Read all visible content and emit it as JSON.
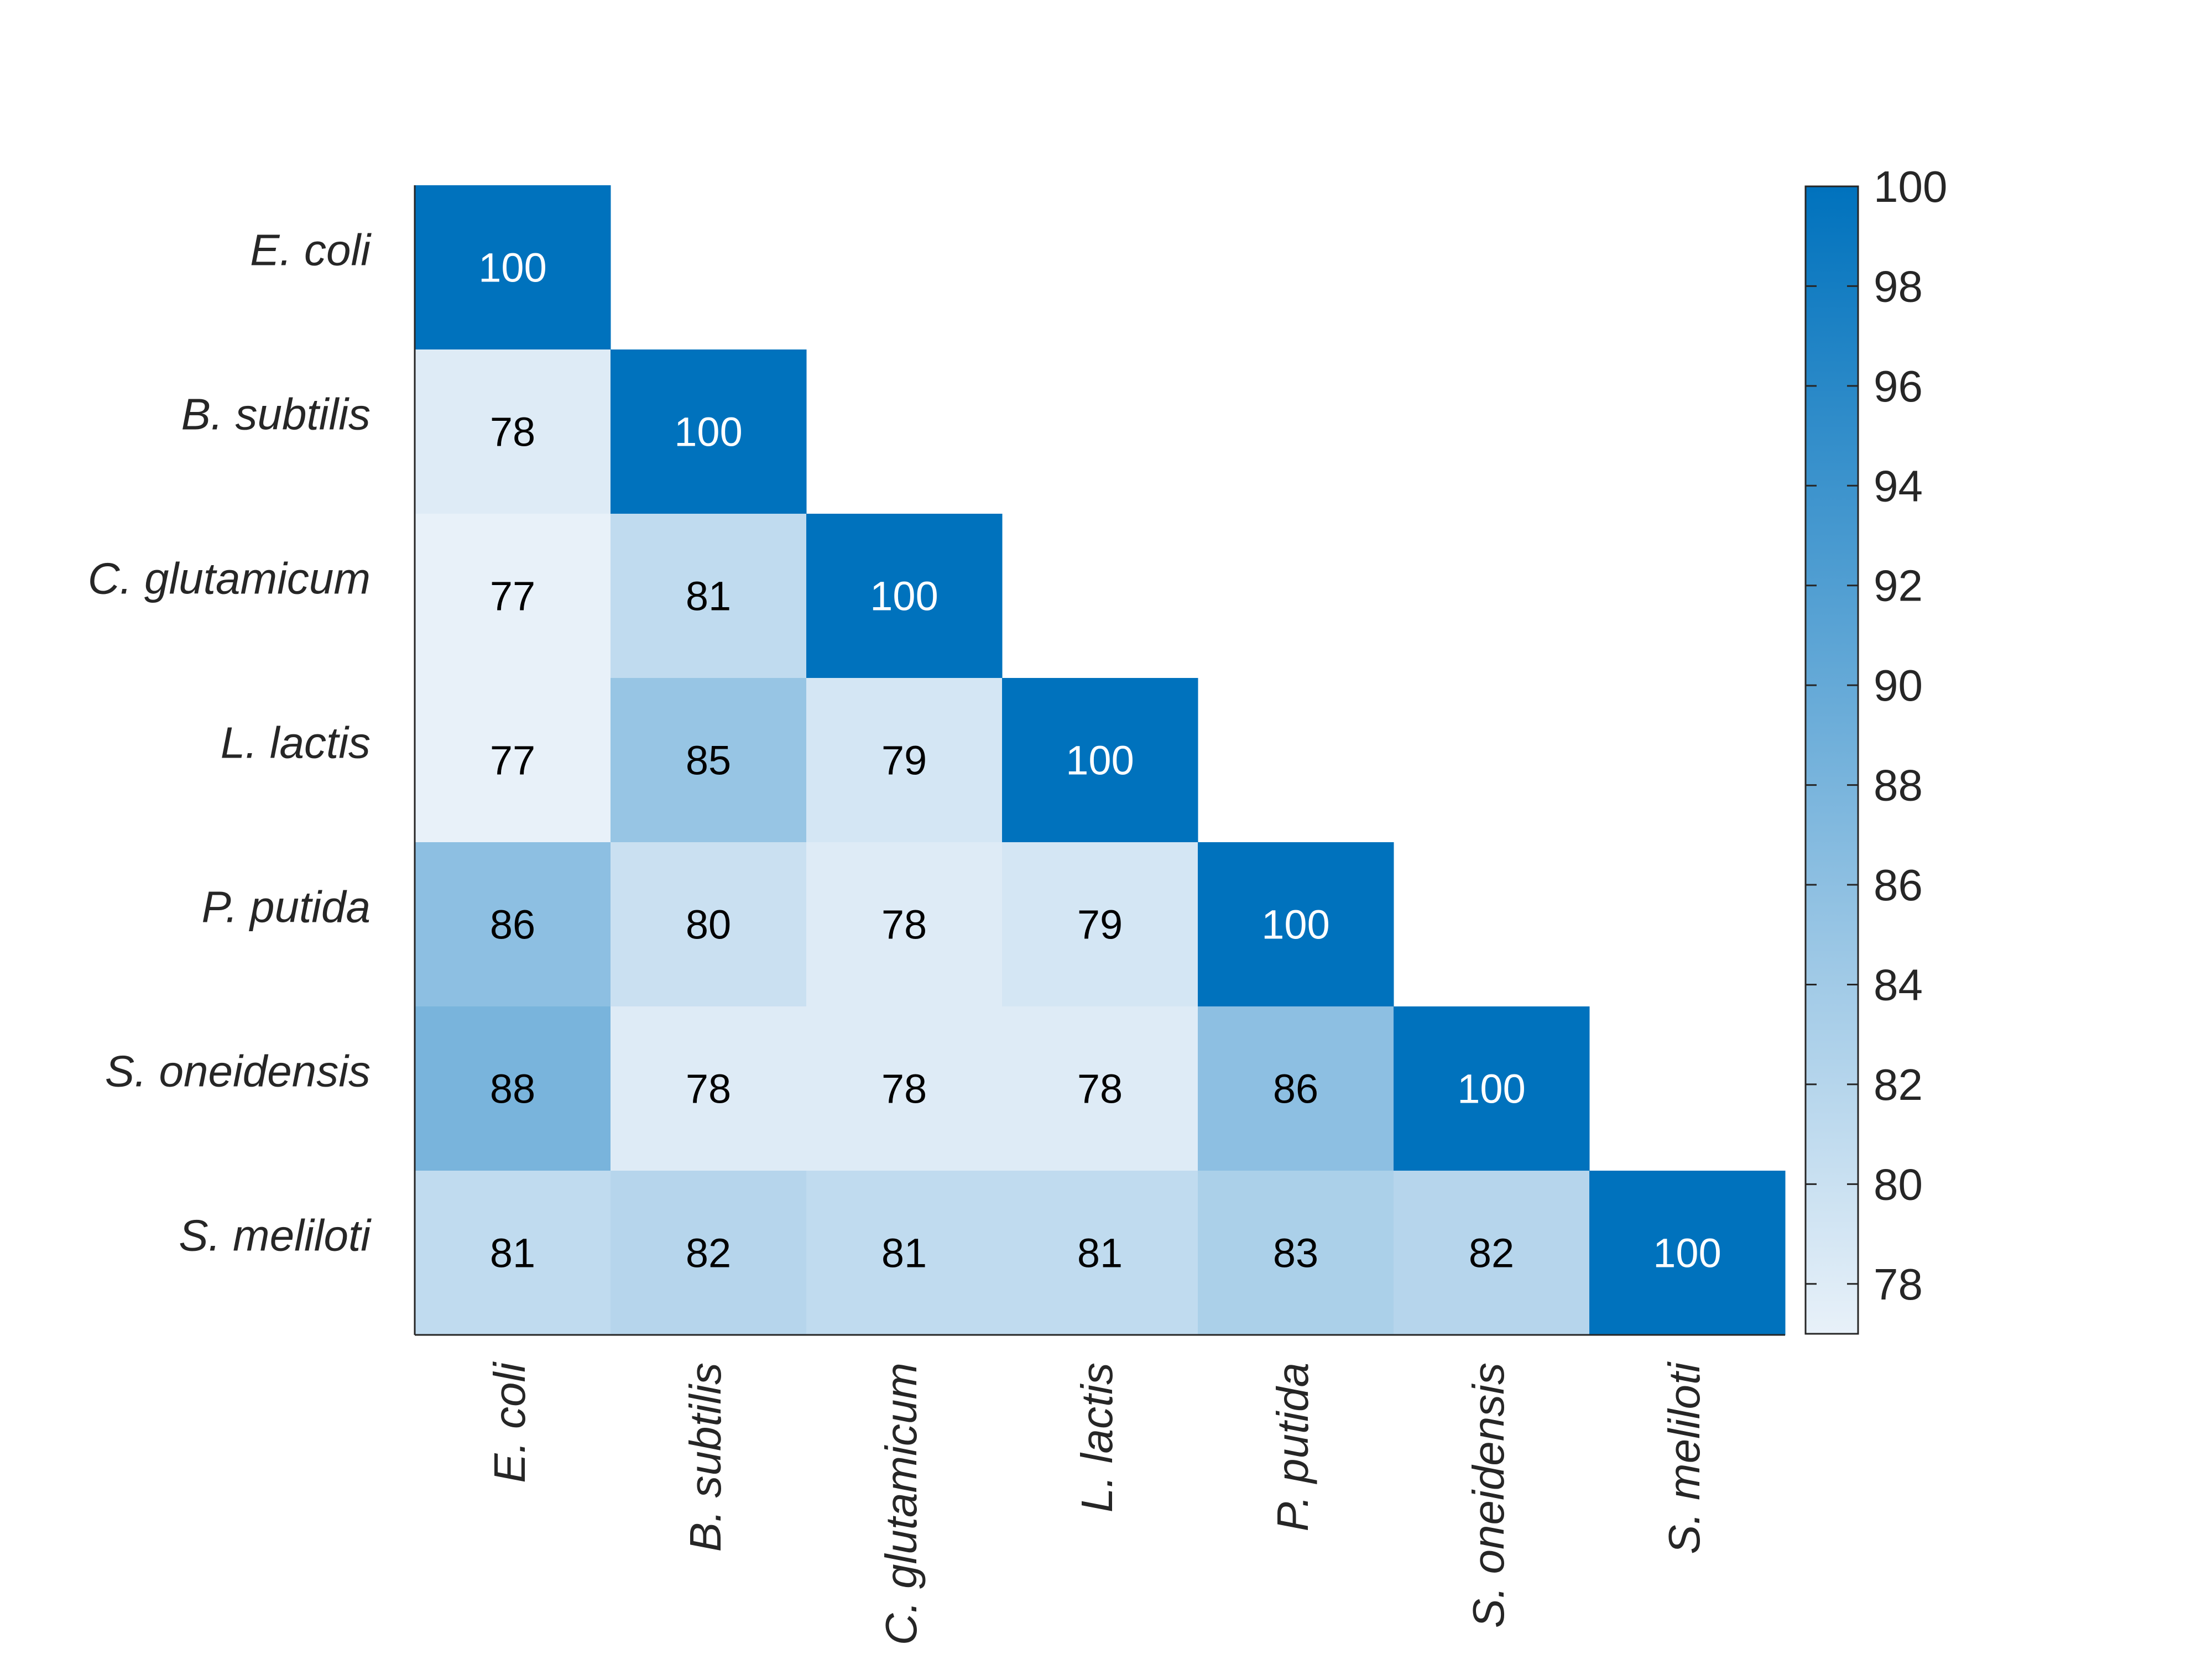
{
  "chart_data": {
    "type": "heatmap",
    "layout": "lower-triangular",
    "rows": [
      "E. coli",
      "B. subtilis",
      "C. glutamicum",
      "L. lactis",
      "P. putida",
      "S. oneidensis",
      "S. meliloti"
    ],
    "columns": [
      "E. coli",
      "B. subtilis",
      "C. glutamicum",
      "L. lactis",
      "P. putida",
      "S. oneidensis",
      "S. meliloti"
    ],
    "values": [
      [
        100
      ],
      [
        78,
        100
      ],
      [
        77,
        81,
        100
      ],
      [
        77,
        85,
        79,
        100
      ],
      [
        86,
        80,
        78,
        79,
        100
      ],
      [
        88,
        78,
        78,
        78,
        86,
        100
      ],
      [
        81,
        82,
        81,
        81,
        83,
        82,
        100
      ]
    ],
    "colorbar": {
      "range": [
        77,
        100
      ],
      "ticks": [
        "78",
        "80",
        "82",
        "84",
        "86",
        "88",
        "90",
        "92",
        "94",
        "96",
        "98",
        "100"
      ],
      "low_color": "#e8f1f9",
      "high_color": "#0072bd"
    },
    "title": "",
    "xlabel": "",
    "ylabel": ""
  }
}
